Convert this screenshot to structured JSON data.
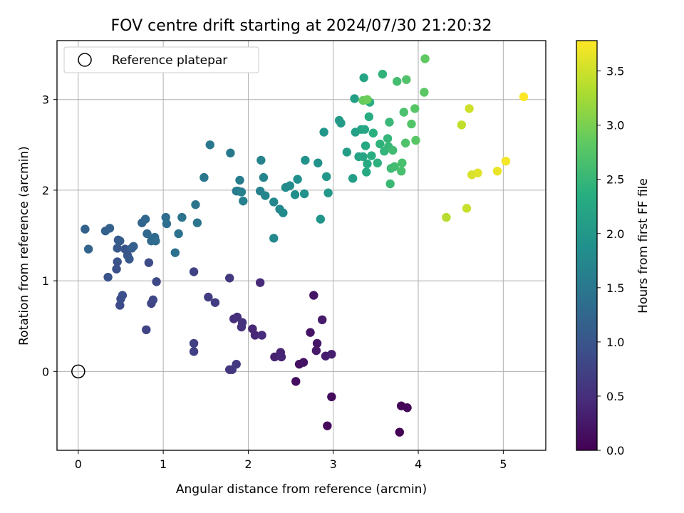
{
  "chart_data": {
    "type": "scatter",
    "title": "FOV centre drift starting at 2024/07/30 21:20:32",
    "xlabel": "Angular distance from reference (arcmin)",
    "ylabel": "Rotation from reference (arcmin)",
    "xlim": [
      -0.25,
      5.5
    ],
    "ylim": [
      -0.87,
      3.65
    ],
    "xticks": [
      0,
      1,
      2,
      3,
      4,
      5
    ],
    "yticks": [
      0,
      1,
      2,
      3
    ],
    "grid": true,
    "legend": {
      "position": "top-left",
      "entries": [
        "Reference platepar"
      ]
    },
    "reference_point": {
      "x": 0,
      "y": 0
    },
    "colorbar": {
      "label": "Hours from first FF file",
      "colormap": "viridis",
      "range": [
        0,
        3.78
      ],
      "ticks": [
        "0.0",
        "0.5",
        "1.0",
        "1.5",
        "2.0",
        "2.5",
        "3.0",
        "3.5"
      ]
    },
    "series": [
      {
        "points": [
          [
            3.78,
            -0.67,
            0.0
          ],
          [
            3.8,
            -0.38,
            0.03
          ],
          [
            3.87,
            -0.4,
            0.05
          ],
          [
            2.93,
            -0.6,
            0.08
          ],
          [
            2.98,
            -0.28,
            0.11
          ],
          [
            2.56,
            -0.11,
            0.13
          ],
          [
            2.6,
            0.08,
            0.16
          ],
          [
            2.65,
            0.1,
            0.18
          ],
          [
            2.73,
            0.43,
            0.2
          ],
          [
            2.77,
            0.84,
            0.22
          ],
          [
            2.81,
            0.31,
            0.24
          ],
          [
            2.8,
            0.23,
            0.26
          ],
          [
            2.87,
            0.57,
            0.28
          ],
          [
            2.91,
            0.17,
            0.3
          ],
          [
            2.98,
            0.19,
            0.32
          ],
          [
            2.31,
            0.16,
            0.35
          ],
          [
            2.38,
            0.21,
            0.37
          ],
          [
            2.39,
            0.16,
            0.39
          ],
          [
            2.05,
            0.47,
            0.41
          ],
          [
            2.08,
            0.4,
            0.43
          ],
          [
            2.14,
            0.98,
            0.45
          ],
          [
            2.16,
            0.4,
            0.47
          ],
          [
            1.83,
            0.58,
            0.49
          ],
          [
            1.87,
            0.6,
            0.51
          ],
          [
            1.92,
            0.49,
            0.53
          ],
          [
            1.93,
            0.54,
            0.55
          ],
          [
            1.78,
            0.02,
            0.57
          ],
          [
            1.81,
            0.02,
            0.59
          ],
          [
            1.86,
            0.08,
            0.61
          ],
          [
            1.78,
            1.03,
            0.63
          ],
          [
            1.53,
            0.82,
            0.66
          ],
          [
            1.61,
            0.76,
            0.68
          ],
          [
            1.36,
            0.22,
            0.7
          ],
          [
            1.36,
            0.31,
            0.72
          ],
          [
            1.36,
            1.1,
            0.74
          ],
          [
            0.8,
            0.46,
            0.76
          ],
          [
            0.86,
            0.75,
            0.78
          ],
          [
            0.88,
            0.79,
            0.8
          ],
          [
            0.92,
            0.99,
            0.82
          ],
          [
            0.83,
            1.2,
            0.85
          ],
          [
            0.49,
            0.73,
            0.87
          ],
          [
            0.5,
            0.8,
            0.89
          ],
          [
            0.52,
            0.84,
            0.91
          ],
          [
            0.45,
            1.13,
            0.93
          ],
          [
            0.46,
            1.21,
            0.95
          ],
          [
            0.35,
            1.04,
            0.97
          ],
          [
            0.55,
            1.35,
            0.99
          ],
          [
            0.58,
            1.28,
            1.01
          ],
          [
            0.6,
            1.24,
            1.03
          ],
          [
            0.46,
            1.36,
            1.05
          ],
          [
            0.47,
            1.45,
            1.07
          ],
          [
            0.49,
            1.44,
            1.09
          ],
          [
            0.63,
            1.36,
            1.11
          ],
          [
            0.65,
            1.38,
            1.13
          ],
          [
            0.32,
            1.55,
            1.15
          ],
          [
            0.37,
            1.58,
            1.17
          ],
          [
            0.08,
            1.57,
            1.19
          ],
          [
            0.12,
            1.35,
            1.21
          ],
          [
            0.75,
            1.64,
            1.23
          ],
          [
            0.79,
            1.68,
            1.25
          ],
          [
            0.81,
            1.52,
            1.27
          ],
          [
            0.86,
            1.44,
            1.29
          ],
          [
            0.9,
            1.48,
            1.31
          ],
          [
            0.91,
            1.44,
            1.33
          ],
          [
            1.03,
            1.7,
            1.35
          ],
          [
            1.04,
            1.63,
            1.37
          ],
          [
            1.14,
            1.31,
            1.39
          ],
          [
            1.18,
            1.52,
            1.41
          ],
          [
            1.22,
            1.7,
            1.43
          ],
          [
            1.38,
            1.84,
            1.45
          ],
          [
            1.4,
            1.64,
            1.47
          ],
          [
            1.48,
            2.14,
            1.49
          ],
          [
            1.55,
            2.5,
            1.51
          ],
          [
            1.79,
            2.41,
            1.53
          ],
          [
            1.86,
            1.99,
            1.55
          ],
          [
            1.88,
            1.99,
            1.57
          ],
          [
            1.9,
            2.11,
            1.59
          ],
          [
            1.92,
            1.98,
            1.61
          ],
          [
            1.94,
            1.88,
            1.63
          ],
          [
            2.14,
            1.99,
            1.65
          ],
          [
            2.15,
            2.33,
            1.67
          ],
          [
            2.18,
            2.14,
            1.69
          ],
          [
            2.2,
            1.94,
            1.71
          ],
          [
            2.3,
            1.87,
            1.73
          ],
          [
            2.3,
            1.47,
            1.75
          ],
          [
            2.37,
            1.79,
            1.77
          ],
          [
            2.41,
            1.75,
            1.79
          ],
          [
            2.44,
            2.03,
            1.81
          ],
          [
            2.49,
            2.05,
            1.83
          ],
          [
            2.55,
            1.95,
            1.85
          ],
          [
            2.58,
            2.12,
            1.87
          ],
          [
            2.66,
            1.96,
            1.89
          ],
          [
            2.67,
            2.33,
            1.91
          ],
          [
            2.82,
            2.3,
            1.93
          ],
          [
            2.85,
            1.68,
            1.95
          ],
          [
            2.89,
            2.64,
            1.97
          ],
          [
            2.92,
            2.15,
            1.99
          ],
          [
            2.94,
            1.97,
            2.01
          ],
          [
            3.07,
            2.77,
            2.03
          ],
          [
            3.09,
            2.74,
            2.05
          ],
          [
            3.16,
            2.42,
            2.08
          ],
          [
            3.23,
            2.13,
            2.1
          ],
          [
            3.25,
            3.01,
            2.12
          ],
          [
            3.26,
            2.64,
            2.14
          ],
          [
            3.3,
            2.37,
            2.16
          ],
          [
            3.33,
            2.67,
            2.18
          ],
          [
            3.35,
            2.37,
            2.2
          ],
          [
            3.36,
            3.24,
            2.22
          ],
          [
            3.37,
            2.67,
            2.24
          ],
          [
            3.38,
            2.49,
            2.26
          ],
          [
            3.39,
            2.2,
            2.28
          ],
          [
            3.4,
            2.29,
            2.3
          ],
          [
            3.42,
            2.81,
            2.32
          ],
          [
            3.43,
            2.97,
            2.34
          ],
          [
            3.45,
            2.38,
            2.36
          ],
          [
            3.47,
            2.63,
            2.38
          ],
          [
            3.52,
            2.3,
            2.4
          ],
          [
            3.55,
            2.51,
            2.42
          ],
          [
            3.58,
            3.28,
            2.44
          ],
          [
            3.6,
            2.43,
            2.46
          ],
          [
            3.64,
            2.57,
            2.48
          ],
          [
            3.65,
            2.48,
            2.5
          ],
          [
            3.66,
            2.75,
            2.52
          ],
          [
            3.67,
            2.07,
            2.54
          ],
          [
            3.68,
            2.24,
            2.56
          ],
          [
            3.7,
            2.44,
            2.58
          ],
          [
            3.72,
            2.26,
            2.6
          ],
          [
            3.75,
            3.2,
            2.62
          ],
          [
            3.8,
            2.21,
            2.64
          ],
          [
            3.81,
            2.3,
            2.66
          ],
          [
            3.83,
            2.86,
            2.68
          ],
          [
            3.85,
            2.52,
            2.7
          ],
          [
            3.86,
            3.22,
            2.72
          ],
          [
            3.92,
            2.73,
            2.74
          ],
          [
            3.96,
            2.9,
            2.76
          ],
          [
            3.97,
            2.55,
            2.78
          ],
          [
            4.07,
            3.08,
            2.8
          ],
          [
            4.08,
            3.45,
            2.84
          ],
          [
            3.35,
            2.99,
            2.88
          ],
          [
            3.4,
            3.0,
            2.92
          ],
          [
            4.33,
            1.7,
            3.36
          ],
          [
            4.51,
            2.72,
            3.42
          ],
          [
            4.57,
            1.8,
            3.46
          ],
          [
            4.6,
            2.9,
            3.5
          ],
          [
            4.63,
            2.17,
            3.56
          ],
          [
            4.7,
            2.19,
            3.6
          ],
          [
            4.93,
            2.21,
            3.66
          ],
          [
            5.03,
            2.32,
            3.72
          ],
          [
            5.24,
            3.03,
            3.78
          ]
        ]
      }
    ]
  }
}
